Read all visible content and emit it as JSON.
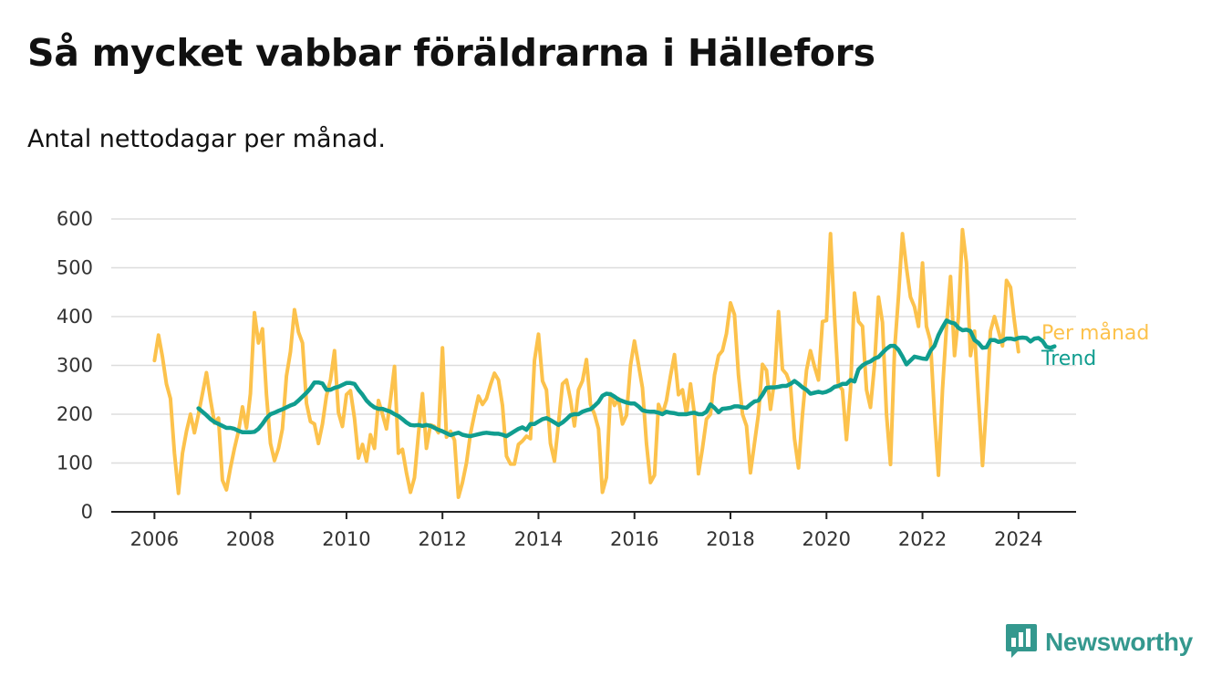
{
  "title": "Så mycket vabbar föräldrarna i Hällefors",
  "subtitle": "Antal nettodagar per månad.",
  "brand": {
    "name": "Newsworthy",
    "icon": "bar-chart-speech-icon",
    "color": "#34988e"
  },
  "colors": {
    "monthly": "#fcc24c",
    "trend": "#109d8f",
    "grid": "#dddddd",
    "axis": "#222222"
  },
  "chart_data": {
    "type": "line",
    "xlim": [
      2005.1,
      2025.2
    ],
    "ylim": [
      0,
      600
    ],
    "x_ticks": [
      2006,
      2008,
      2010,
      2012,
      2014,
      2016,
      2018,
      2020,
      2022,
      2024
    ],
    "x_tick_labels": [
      "2006",
      "2008",
      "2010",
      "2012",
      "2014",
      "2016",
      "2018",
      "2020",
      "2022",
      "2024"
    ],
    "y_ticks": [
      0,
      100,
      200,
      300,
      400,
      500,
      600
    ],
    "y_tick_labels": [
      "0",
      "100",
      "200",
      "300",
      "400",
      "500",
      "600"
    ],
    "grid": true,
    "legend": "right end of lines",
    "series": [
      {
        "name": "Per månad",
        "color": "#fcc24c",
        "x_start": 2006.0,
        "x_step": 0.0833333,
        "values": [
          310,
          362,
          318,
          262,
          232,
          120,
          38,
          120,
          165,
          200,
          162,
          200,
          242,
          285,
          230,
          182,
          192,
          65,
          45,
          90,
          130,
          165,
          215,
          172,
          242,
          408,
          346,
          375,
          240,
          140,
          105,
          130,
          170,
          278,
          328,
          414,
          368,
          346,
          222,
          185,
          180,
          140,
          180,
          238,
          270,
          330,
          204,
          175,
          240,
          248,
          192,
          110,
          138,
          104,
          158,
          130,
          228,
          200,
          170,
          230,
          298,
          120,
          128,
          80,
          40,
          70,
          160,
          242,
          130,
          178,
          175,
          162,
          336,
          153,
          165,
          147,
          30,
          60,
          100,
          160,
          200,
          237,
          220,
          232,
          260,
          284,
          270,
          218,
          114,
          98,
          98,
          138,
          145,
          155,
          150,
          310,
          364,
          268,
          250,
          140,
          104,
          180,
          262,
          270,
          230,
          176,
          250,
          268,
          312,
          220,
          200,
          170,
          40,
          70,
          242,
          218,
          232,
          180,
          198,
          300,
          350,
          302,
          254,
          140,
          60,
          75,
          220,
          200,
          228,
          278,
          322,
          240,
          250,
          200,
          262,
          200,
          78,
          130,
          190,
          200,
          280,
          320,
          330,
          365,
          428,
          404,
          280,
          200,
          176,
          80,
          140,
          200,
          302,
          290,
          210,
          270,
          410,
          292,
          282,
          260,
          150,
          90,
          200,
          290,
          330,
          298,
          270,
          390,
          392,
          570,
          400,
          260,
          250,
          148,
          250,
          448,
          390,
          380,
          250,
          214,
          300,
          440,
          388,
          200,
          97,
          330,
          440,
          570,
          500,
          440,
          420,
          380,
          510,
          380,
          350,
          200,
          75,
          250,
          380,
          482,
          320,
          400,
          578,
          510,
          320,
          370,
          230,
          95,
          220,
          370,
          400,
          370,
          340,
          474,
          460,
          390,
          328
        ]
      },
      {
        "name": "Trend",
        "color": "#109d8f",
        "x_start": 2006.9167,
        "x_step": 0.0833333,
        "values": [
          212,
          205,
          198,
          190,
          184,
          180,
          176,
          172,
          172,
          170,
          166,
          163,
          163,
          163,
          164,
          170,
          180,
          192,
          200,
          203,
          207,
          210,
          214,
          218,
          221,
          228,
          236,
          244,
          253,
          265,
          265,
          263,
          250,
          250,
          254,
          256,
          260,
          264,
          264,
          262,
          250,
          240,
          228,
          220,
          214,
          211,
          211,
          208,
          205,
          200,
          196,
          190,
          183,
          178,
          177,
          178,
          176,
          178,
          176,
          172,
          168,
          165,
          161,
          157,
          160,
          162,
          158,
          156,
          155,
          157,
          159,
          161,
          162,
          161,
          160,
          160,
          158,
          155,
          160,
          165,
          170,
          173,
          168,
          180,
          180,
          185,
          190,
          192,
          188,
          183,
          178,
          183,
          190,
          198,
          200,
          200,
          205,
          208,
          210,
          217,
          225,
          238,
          242,
          241,
          236,
          230,
          227,
          224,
          222,
          222,
          216,
          208,
          206,
          205,
          205,
          203,
          200,
          205,
          203,
          202,
          200,
          200,
          200,
          202,
          203,
          200,
          200,
          205,
          220,
          213,
          204,
          211,
          212,
          213,
          216,
          216,
          214,
          213,
          220,
          226,
          228,
          240,
          254,
          255,
          255,
          256,
          258,
          258,
          262,
          268,
          262,
          255,
          250,
          242,
          244,
          246,
          244,
          246,
          250,
          256,
          258,
          262,
          262,
          270,
          267,
          292,
          300,
          305,
          308,
          314,
          317,
          326,
          334,
          340,
          340,
          332,
          318,
          302,
          310,
          318,
          316,
          314,
          313,
          330,
          340,
          362,
          378,
          392,
          388,
          386,
          377,
          372,
          373,
          370,
          352,
          346,
          336,
          337,
          352,
          352,
          348,
          350,
          355,
          355,
          353,
          356,
          357,
          356,
          349,
          355,
          356,
          350,
          338,
          336,
          339
        ]
      }
    ]
  }
}
